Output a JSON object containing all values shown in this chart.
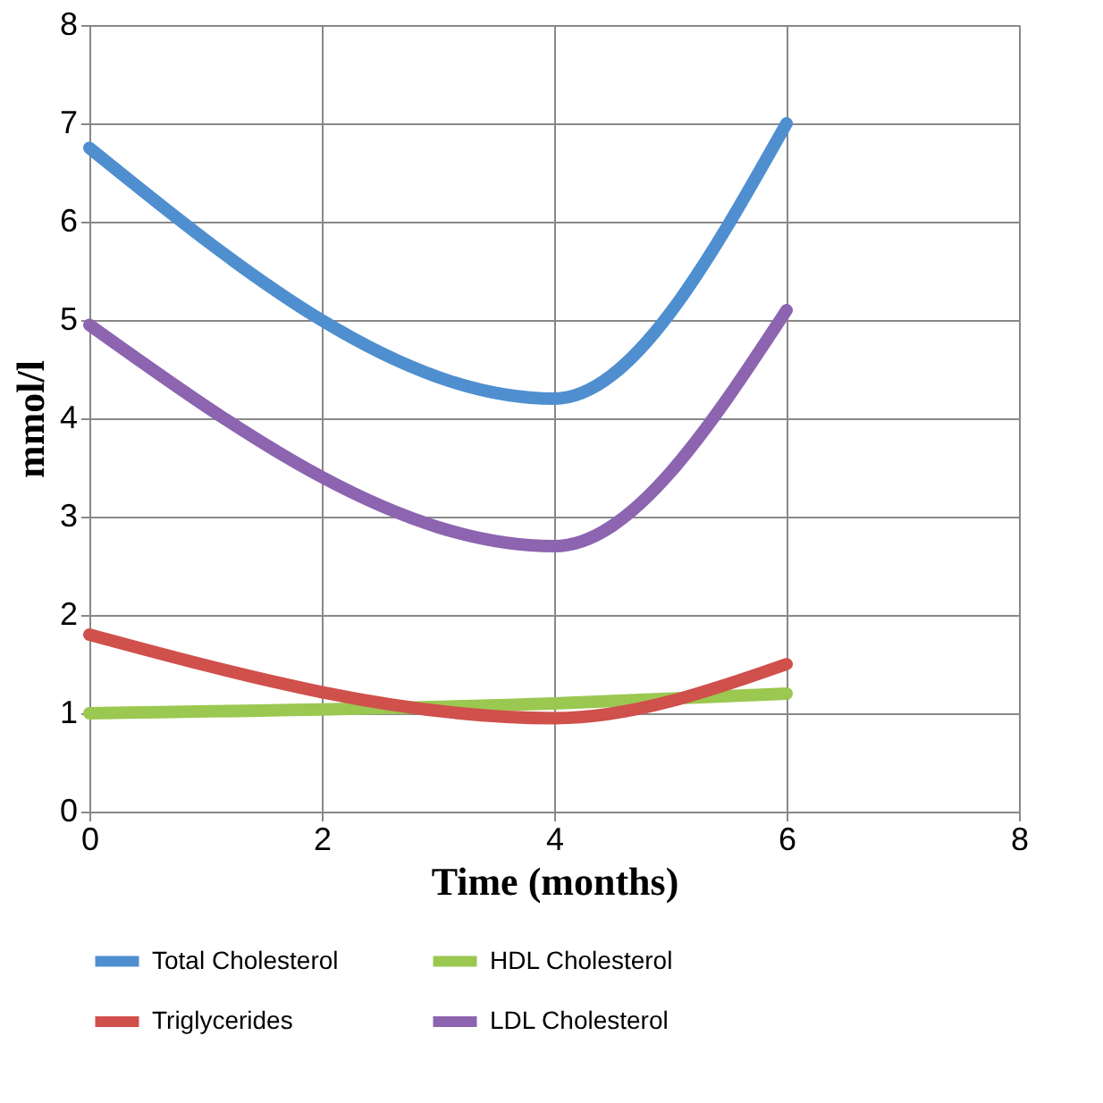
{
  "chart_data": {
    "type": "line",
    "xlabel": "Time (months)",
    "ylabel": "mmol/l",
    "x": [
      0,
      4,
      6
    ],
    "series": [
      {
        "name": "Total Cholesterol",
        "color": "#4f8fd0",
        "values": [
          6.75,
          4.2,
          7.0
        ]
      },
      {
        "name": "HDL Cholesterol",
        "color": "#9bc850",
        "values": [
          1.0,
          1.1,
          1.2
        ]
      },
      {
        "name": "Triglycerides",
        "color": "#d0504c",
        "values": [
          1.8,
          0.95,
          1.5
        ]
      },
      {
        "name": "LDL Cholesterol",
        "color": "#8c64b0",
        "values": [
          4.95,
          2.7,
          5.1
        ]
      }
    ],
    "xlim": [
      0,
      8
    ],
    "xticks": [
      0,
      2,
      4,
      6,
      8
    ],
    "ylim": [
      0,
      8
    ],
    "yticks": [
      0,
      1,
      2,
      3,
      4,
      5,
      6,
      7,
      8
    ],
    "grid": true,
    "legend": "bottom",
    "marker": "none",
    "line_style": "solid"
  }
}
